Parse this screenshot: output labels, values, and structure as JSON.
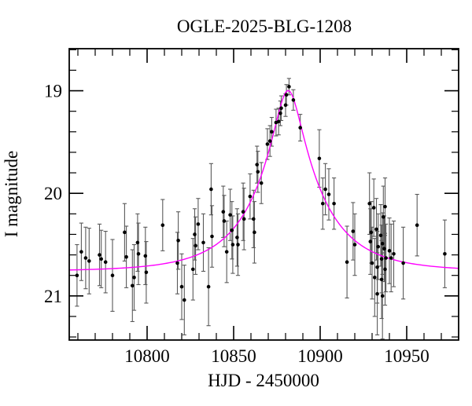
{
  "chart_data": {
    "type": "scatter",
    "title": "OGLE-2025-BLG-1208",
    "xlabel": "HJD - 2450000",
    "ylabel": "I magnitude",
    "xlim": [
      10755,
      10980
    ],
    "ylim": [
      18.59,
      21.43
    ],
    "y_axis_inverted": true,
    "grid": false,
    "x_major_ticks": [
      10800,
      10850,
      10900,
      10950
    ],
    "x_minor_step": 10,
    "y_major_ticks": [
      19,
      20,
      21
    ],
    "y_minor_step": 0.2,
    "colors": {
      "model_curve": "#ff00ff",
      "data_point": "#000000",
      "error_bar": "#5a5a5a",
      "axis": "#000000",
      "background": "#ffffff"
    },
    "model_curve": {
      "name": "paczynski-microlensing-model",
      "params": {
        "t0": 10881.5,
        "tE": 38,
        "u0": 0.2,
        "I_base": 20.76
      }
    },
    "points_format": [
      "hjd_minus_2450000",
      "I_mag",
      "err_mag"
    ],
    "points": [
      [
        10759.5,
        20.8,
        0.3
      ],
      [
        10762.0,
        20.57,
        0.28
      ],
      [
        10764.5,
        20.63,
        0.3
      ],
      [
        10766.5,
        20.66,
        0.32
      ],
      [
        10772.5,
        20.6,
        0.3
      ],
      [
        10773.5,
        20.64,
        0.28
      ],
      [
        10776.0,
        20.67,
        0.3
      ],
      [
        10780.0,
        20.8,
        0.35
      ],
      [
        10787.0,
        20.38,
        0.28
      ],
      [
        10788.0,
        20.62,
        0.3
      ],
      [
        10791.5,
        20.9,
        0.35
      ],
      [
        10792.5,
        20.82,
        0.32
      ],
      [
        10794.5,
        20.48,
        0.28
      ],
      [
        10795.0,
        20.59,
        0.3
      ],
      [
        10799.0,
        20.61,
        0.28
      ],
      [
        10799.5,
        20.77,
        0.3
      ],
      [
        10809.0,
        20.31,
        0.25
      ],
      [
        10817.5,
        20.68,
        0.3
      ],
      [
        10818.0,
        20.46,
        0.28
      ],
      [
        10820.0,
        20.91,
        0.32
      ],
      [
        10821.5,
        21.04,
        0.34
      ],
      [
        10826.5,
        20.74,
        0.3
      ],
      [
        10827.5,
        20.4,
        0.25
      ],
      [
        10828.0,
        20.51,
        0.28
      ],
      [
        10829.5,
        20.3,
        0.25
      ],
      [
        10832.5,
        20.48,
        0.28
      ],
      [
        10835.5,
        20.91,
        0.38
      ],
      [
        10837.0,
        19.96,
        0.25
      ],
      [
        10837.5,
        20.42,
        0.3
      ],
      [
        10844.0,
        20.18,
        0.25
      ],
      [
        10844.5,
        20.27,
        0.25
      ],
      [
        10846.0,
        20.57,
        0.3
      ],
      [
        10848.0,
        20.21,
        0.25
      ],
      [
        10849.0,
        20.36,
        0.28
      ],
      [
        10849.5,
        20.5,
        0.28
      ],
      [
        10852.0,
        20.43,
        0.28
      ],
      [
        10852.5,
        20.5,
        0.3
      ],
      [
        10855.5,
        20.18,
        0.28
      ],
      [
        10856.0,
        20.25,
        0.3
      ],
      [
        10859.5,
        20.03,
        0.22
      ],
      [
        10861.5,
        20.25,
        0.28
      ],
      [
        10862.0,
        20.38,
        0.3
      ],
      [
        10863.5,
        19.72,
        0.18
      ],
      [
        10864.0,
        19.79,
        0.2
      ],
      [
        10866.0,
        19.9,
        0.2
      ],
      [
        10869.5,
        19.52,
        0.15
      ],
      [
        10871.0,
        19.49,
        0.15
      ],
      [
        10872.0,
        19.4,
        0.14
      ],
      [
        10874.5,
        19.31,
        0.13
      ],
      [
        10876.0,
        19.3,
        0.13
      ],
      [
        10877.0,
        19.22,
        0.12
      ],
      [
        10877.5,
        19.17,
        0.12
      ],
      [
        10880.0,
        19.14,
        0.11
      ],
      [
        10880.5,
        19.04,
        0.1
      ],
      [
        10882.0,
        18.96,
        0.08
      ],
      [
        10884.5,
        19.09,
        0.1
      ],
      [
        10888.5,
        19.36,
        0.13
      ],
      [
        10899.5,
        19.66,
        0.28
      ],
      [
        10901.5,
        20.1,
        0.25
      ],
      [
        10903.0,
        19.96,
        0.25
      ],
      [
        10905.0,
        20.01,
        0.25
      ],
      [
        10908.0,
        20.1,
        0.25
      ],
      [
        10915.5,
        20.67,
        0.35
      ],
      [
        10919.0,
        20.37,
        0.28
      ],
      [
        10920.0,
        20.5,
        0.3
      ],
      [
        10928.5,
        20.1,
        0.3
      ],
      [
        10929.0,
        20.47,
        0.32
      ],
      [
        10929.5,
        20.38,
        0.3
      ],
      [
        10930.0,
        20.68,
        0.35
      ],
      [
        10931.0,
        20.14,
        0.28
      ],
      [
        10931.5,
        20.82,
        0.38
      ],
      [
        10932.5,
        20.35,
        0.3
      ],
      [
        10933.0,
        20.72,
        0.35
      ],
      [
        10933.0,
        20.98,
        0.4
      ],
      [
        10933.5,
        20.52,
        0.32
      ],
      [
        10935.0,
        20.41,
        0.3
      ],
      [
        10935.5,
        20.64,
        0.33
      ],
      [
        10935.5,
        20.84,
        0.38
      ],
      [
        10936.0,
        20.49,
        0.3
      ],
      [
        10936.0,
        21.0,
        0.42
      ],
      [
        10936.5,
        20.23,
        0.3
      ],
      [
        10937.0,
        20.54,
        0.32
      ],
      [
        10937.5,
        20.13,
        0.28
      ],
      [
        10937.5,
        20.74,
        0.35
      ],
      [
        10938.0,
        20.63,
        0.33
      ],
      [
        10940.0,
        20.56,
        0.32
      ],
      [
        10941.0,
        20.63,
        0.33
      ],
      [
        10942.5,
        20.59,
        0.32
      ],
      [
        10948.0,
        20.68,
        0.35
      ],
      [
        10956.0,
        20.31,
        0.3
      ],
      [
        10972.0,
        20.59,
        0.33
      ]
    ]
  }
}
